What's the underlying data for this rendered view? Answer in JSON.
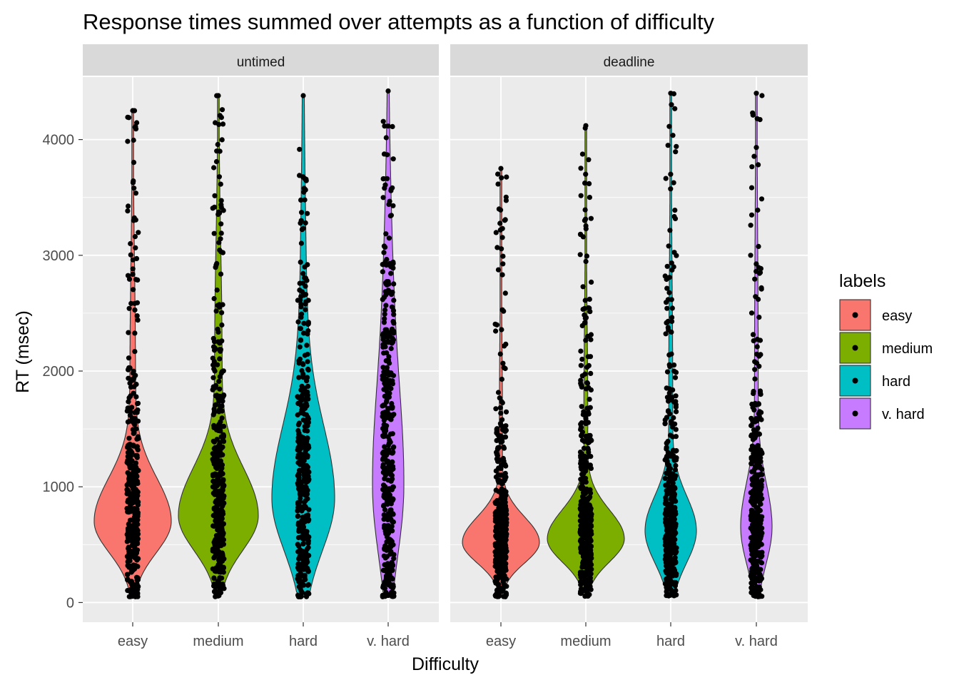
{
  "chart_data": {
    "type": "violin",
    "title": "Response times summed over attempts as a function of difficulty",
    "xlabel": "Difficulty",
    "ylabel": "RT (msec)",
    "ylim": [
      -170,
      4540
    ],
    "y_ticks": [
      0,
      1000,
      2000,
      3000,
      4000
    ],
    "categories": [
      "easy",
      "medium",
      "hard",
      "v. hard"
    ],
    "grid": true,
    "legend": {
      "title": "labels",
      "placement": "right",
      "entries": [
        {
          "label": "easy",
          "color": "#F8766D"
        },
        {
          "label": "medium",
          "color": "#7CAE00"
        },
        {
          "label": "hard",
          "color": "#00BFC4"
        },
        {
          "label": "v. hard",
          "color": "#C77CFF"
        }
      ]
    },
    "panels": [
      {
        "strip": "untimed",
        "series": [
          {
            "category": "easy",
            "min": 50,
            "max": 4250,
            "mode": 700,
            "summary": "mode around 700 msec, long right tail"
          },
          {
            "category": "medium",
            "min": 50,
            "max": 4380,
            "mode": 750,
            "summary": "mode around 750 msec"
          },
          {
            "category": "hard",
            "min": 50,
            "max": 4380,
            "mode": 900,
            "summary": "broad mode around 900 msec"
          },
          {
            "category": "v. hard",
            "min": 50,
            "max": 4420,
            "mode": 1000,
            "summary": "broad distribution around 1000 msec"
          }
        ]
      },
      {
        "strip": "deadline",
        "series": [
          {
            "category": "easy",
            "min": 50,
            "max": 3750,
            "mode": 520,
            "summary": "mode around 520 msec"
          },
          {
            "category": "medium",
            "min": 50,
            "max": 4120,
            "mode": 550,
            "summary": "mode around 550 msec"
          },
          {
            "category": "hard",
            "min": 50,
            "max": 4400,
            "mode": 620,
            "summary": "mode around 620 msec"
          },
          {
            "category": "v. hard",
            "min": 50,
            "max": 4400,
            "mode": 650,
            "summary": "mode around 650 msec"
          }
        ]
      }
    ]
  }
}
